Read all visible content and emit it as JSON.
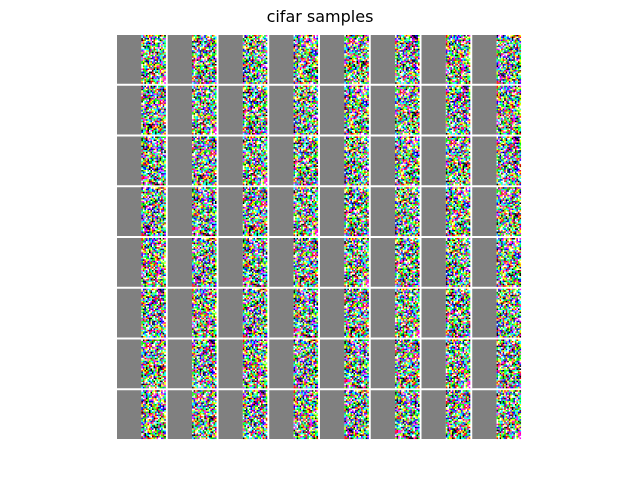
{
  "title": "cifar samples"
}
